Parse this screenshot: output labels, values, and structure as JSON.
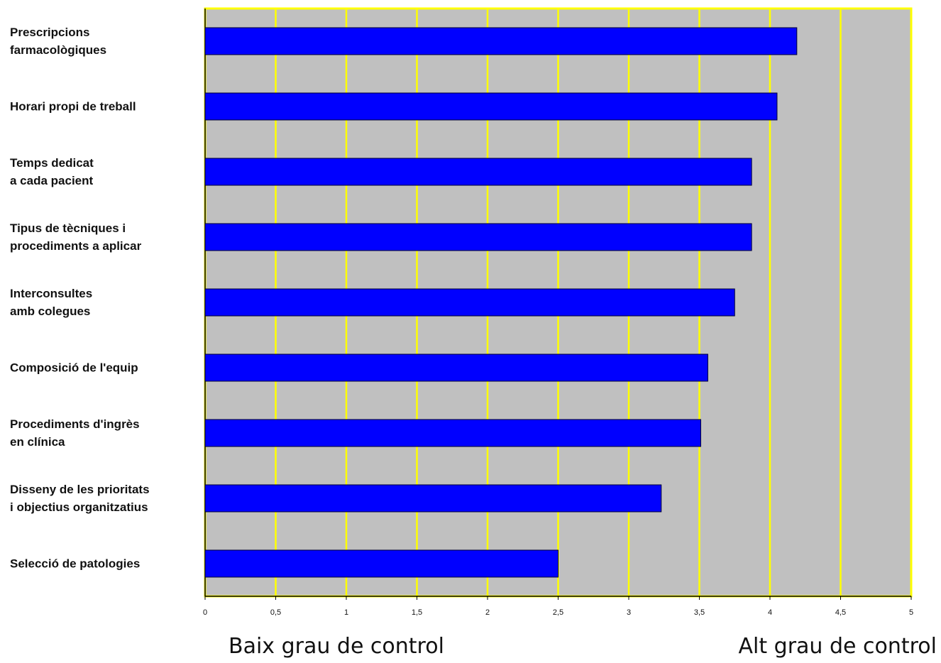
{
  "chart_data": {
    "type": "barh",
    "categories": [
      "Prescripcions\nfarmacològiques",
      "Horari propi de treball",
      "Temps dedicat\na cada pacient",
      "Tipus de tècniques i\nprocediments a aplicar",
      "Interconsultes\namb colegues",
      "Composició de l'equip",
      "Procediments d'ingrès\nen clínica",
      "Disseny de les prioritats\ni objectius organitzatius",
      "Selecció de patologies"
    ],
    "values": [
      4.19,
      4.05,
      3.87,
      3.87,
      3.75,
      3.56,
      3.51,
      3.23,
      2.5
    ],
    "color": "#0000ff",
    "xlim": [
      0,
      5
    ],
    "xticks": [
      0,
      {
        "value": 0.5,
        "label": "0,5"
      },
      1,
      {
        "value": 1.5,
        "label": "1,5"
      },
      2,
      {
        "value": 2.5,
        "label": "2,5"
      },
      3,
      {
        "value": 3.5,
        "label": "3,5"
      },
      4,
      {
        "value": 4.5,
        "label": "4,5"
      },
      5
    ],
    "grid": true,
    "grid_color": "#ffff00",
    "plot_background": "#c0c0c0",
    "annotations": [
      "Baix grau de control",
      "Alt grau de control"
    ]
  }
}
